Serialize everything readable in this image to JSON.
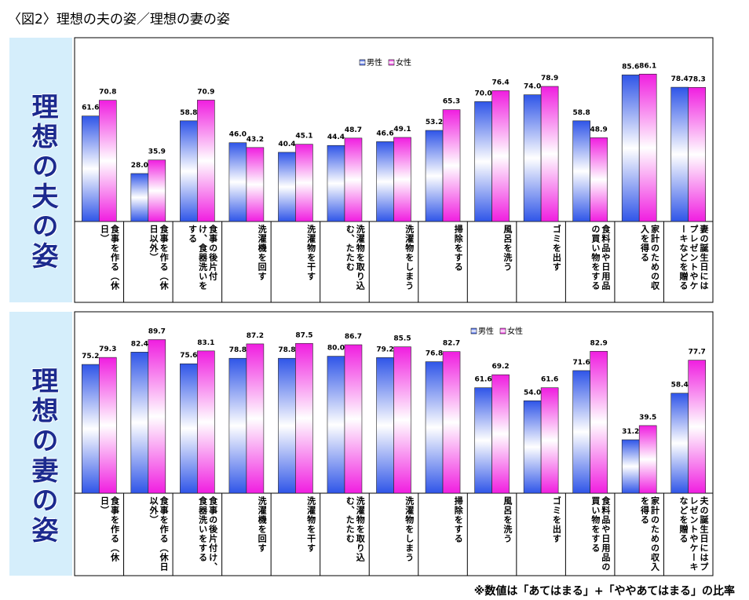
{
  "title": "〈図2〉理想の夫の姿／理想の妻の姿",
  "footnote": "※数値は「あてはまる」+「ややあてはまる」の比率",
  "chart_data": [
    {
      "type": "bar",
      "title": "理想の夫の姿",
      "categories": [
        "食事を作る（休日）",
        "食事を作る（休日以外）",
        "食事の後片付け、食器洗いをする",
        "洗濯機を回す",
        "洗濯物を干す",
        "洗濯物を取り込む、たたむ",
        "洗濯物をしまう",
        "掃除をする",
        "風呂を洗う",
        "ゴミを出す",
        "食料品や日用品の買い物をする",
        "家計のための収入を得る",
        "妻の誕生日にはプレゼントやケーキなどを贈る"
      ],
      "series": [
        {
          "name": "男性",
          "color": "#2f55e8",
          "values": [
            61.6,
            28.0,
            58.8,
            46.0,
            40.4,
            44.4,
            46.6,
            53.2,
            70.0,
            74.0,
            58.8,
            85.6,
            78.4
          ],
          "value_labels": [
            "61.6",
            "28.0",
            "58.8",
            "46.0",
            "40.4",
            "44.4",
            "46.6",
            "53.2",
            "70.0",
            "74.0",
            "58.8",
            "85.6",
            "78.4"
          ]
        },
        {
          "name": "女性",
          "color": "#f01ee0",
          "values": [
            70.8,
            35.9,
            70.9,
            43.2,
            45.1,
            48.7,
            49.1,
            65.3,
            76.4,
            78.9,
            48.9,
            86.1,
            78.3
          ],
          "value_labels": [
            "70.8",
            "35.9",
            "70.9",
            "43.2",
            "45.1",
            "48.7",
            "49.1",
            "65.3",
            "76.4",
            "78.9",
            "48.9",
            "86.1",
            "78.3"
          ]
        }
      ],
      "ylim": [
        0,
        100
      ]
    },
    {
      "type": "bar",
      "title": "理想の妻の姿",
      "categories": [
        "食事を作る（休日）",
        "食事を作る（休日以外）",
        "食事の後片付け、食器洗いをする",
        "洗濯機を回す",
        "洗濯物を干す",
        "洗濯物を取り込む、たたむ",
        "洗濯物をしまう",
        "掃除をする",
        "風呂を洗う",
        "ゴミを出す",
        "食料品や日用品の買い物をする",
        "家計のための収入を得る",
        "夫の誕生日にはプレゼントやケーキなどを贈る"
      ],
      "series": [
        {
          "name": "男性",
          "color": "#2f55e8",
          "values": [
            75.2,
            82.4,
            75.6,
            78.8,
            78.8,
            80.0,
            79.2,
            76.8,
            61.6,
            54.0,
            71.6,
            31.2,
            58.4
          ],
          "value_labels": [
            "75.2",
            "82.4",
            "75.6",
            "78.8",
            "78.8",
            "80.0",
            "79.2",
            "76.8",
            "61.6",
            "54.0",
            "71.6",
            "31.2",
            "58.4"
          ]
        },
        {
          "name": "女性",
          "color": "#f01ee0",
          "values": [
            79.3,
            89.7,
            83.1,
            87.2,
            87.5,
            86.7,
            85.5,
            82.7,
            69.2,
            61.6,
            82.9,
            39.5,
            77.7
          ],
          "value_labels": [
            "79.3",
            "89.7",
            "83.1",
            "87.2",
            "87.5",
            "86.7",
            "85.5",
            "82.7",
            "69.2",
            "61.6",
            "82.9",
            "39.5",
            "77.7"
          ]
        }
      ],
      "ylim": [
        0,
        100
      ]
    }
  ]
}
